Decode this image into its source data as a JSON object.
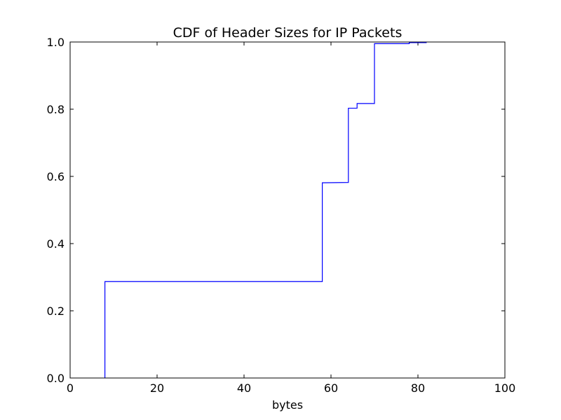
{
  "chart_data": {
    "type": "line",
    "step": "post",
    "title": "CDF of Header Sizes for IP Packets",
    "xlabel": "bytes",
    "ylabel": "",
    "xlim": [
      0,
      100
    ],
    "ylim": [
      0,
      1
    ],
    "x_ticks": [
      0,
      20,
      40,
      60,
      80,
      100
    ],
    "y_ticks": [
      0.0,
      0.2,
      0.4,
      0.6,
      0.8,
      1.0
    ],
    "x_tick_labels": [
      "0",
      "20",
      "40",
      "60",
      "80",
      "100"
    ],
    "y_tick_labels": [
      "0.0",
      "0.2",
      "0.4",
      "0.6",
      "0.8",
      "1.0"
    ],
    "grid": false,
    "line_color": "#0000ff",
    "series": [
      {
        "x": [
          8,
          8,
          58,
          58,
          64,
          64,
          66,
          66,
          70,
          70,
          78,
          78,
          82
        ],
        "y": [
          0.0,
          0.287,
          0.287,
          0.581,
          0.582,
          0.803,
          0.803,
          0.817,
          0.817,
          0.995,
          0.995,
          0.998,
          0.998
        ]
      }
    ]
  }
}
